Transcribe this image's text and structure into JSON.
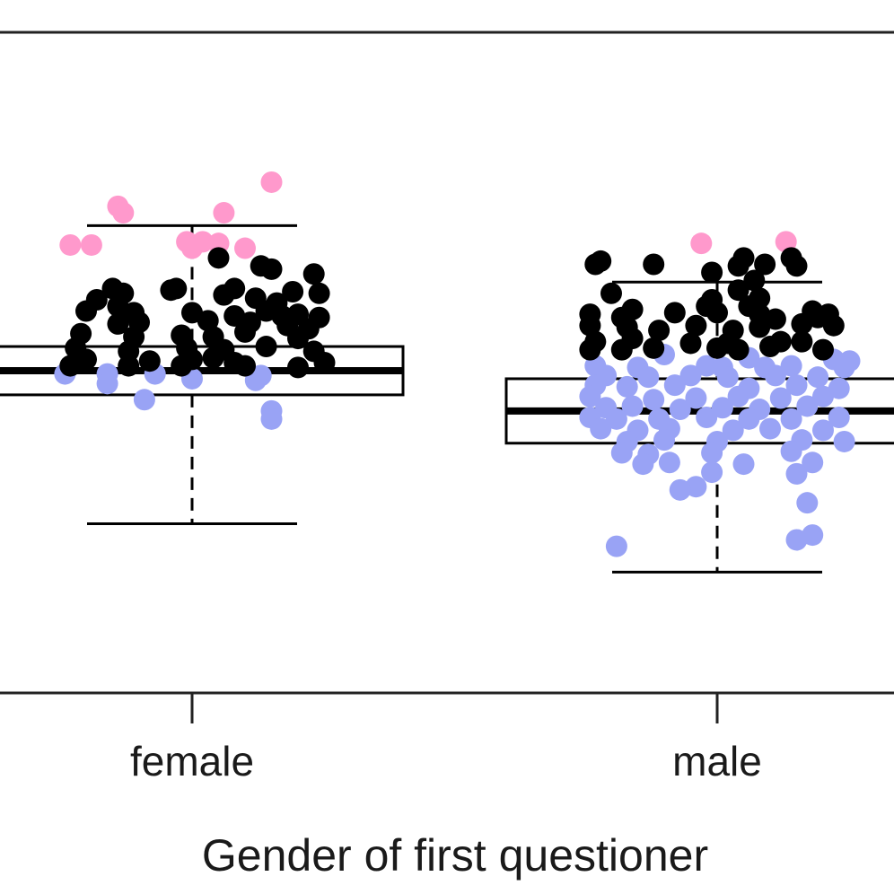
{
  "chart_data": {
    "type": "box",
    "xlabel": "Gender of first questioner",
    "categories": [
      "female",
      "male"
    ],
    "colors": {
      "pink": "#ff99cc",
      "black": "#000000",
      "blue": "#99a3f5",
      "box": "#000000"
    },
    "boxes": [
      {
        "category": "female",
        "whisker_low": 0.305,
        "q1": 0.385,
        "median": 0.4,
        "q3": 0.415,
        "whisker_high": 0.49
      },
      {
        "category": "male",
        "whisker_low": 0.275,
        "q1": 0.355,
        "median": 0.375,
        "q3": 0.395,
        "whisker_high": 0.455
      }
    ],
    "ylim": [
      0.2,
      0.61
    ],
    "points": {
      "female": {
        "pink": [
          [
            -0.14,
            0.502
          ],
          [
            -0.13,
            0.498
          ],
          [
            0.06,
            0.498
          ],
          [
            0.15,
            0.517
          ],
          [
            -0.23,
            0.478
          ],
          [
            -0.19,
            0.478
          ],
          [
            -0.01,
            0.48
          ],
          [
            0.02,
            0.48
          ],
          [
            0.05,
            0.479
          ],
          [
            0.1,
            0.476
          ],
          [
            0.0,
            0.476
          ]
        ],
        "black": [
          [
            0.05,
            0.47
          ],
          [
            0.13,
            0.465
          ],
          [
            0.15,
            0.463
          ],
          [
            0.23,
            0.46
          ],
          [
            -0.15,
            0.451
          ],
          [
            -0.13,
            0.448
          ],
          [
            -0.04,
            0.45
          ],
          [
            -0.03,
            0.451
          ],
          [
            0.08,
            0.451
          ],
          [
            0.06,
            0.447
          ],
          [
            0.19,
            0.449
          ],
          [
            0.24,
            0.448
          ],
          [
            -0.18,
            0.444
          ],
          [
            -0.14,
            0.44
          ],
          [
            0.12,
            0.445
          ],
          [
            0.16,
            0.442
          ],
          [
            -0.2,
            0.437
          ],
          [
            -0.11,
            0.436
          ],
          [
            0.0,
            0.436
          ],
          [
            0.08,
            0.434
          ],
          [
            0.14,
            0.437
          ],
          [
            0.17,
            0.434
          ],
          [
            0.2,
            0.435
          ],
          [
            0.24,
            0.433
          ],
          [
            -0.14,
            0.429
          ],
          [
            -0.1,
            0.43
          ],
          [
            0.03,
            0.431
          ],
          [
            0.11,
            0.43
          ],
          [
            0.18,
            0.428
          ],
          [
            0.22,
            0.426
          ],
          [
            -0.21,
            0.423
          ],
          [
            -0.11,
            0.421
          ],
          [
            -0.02,
            0.422
          ],
          [
            0.04,
            0.421
          ],
          [
            0.1,
            0.424
          ],
          [
            0.2,
            0.42
          ],
          [
            -0.22,
            0.414
          ],
          [
            -0.12,
            0.412
          ],
          [
            -0.01,
            0.414
          ],
          [
            0.06,
            0.413
          ],
          [
            0.14,
            0.415
          ],
          [
            0.23,
            0.412
          ],
          [
            -0.2,
            0.407
          ],
          [
            -0.08,
            0.406
          ],
          [
            0.0,
            0.407
          ],
          [
            0.04,
            0.408
          ],
          [
            0.08,
            0.405
          ],
          [
            0.25,
            0.405
          ],
          [
            -0.23,
            0.403
          ],
          [
            -0.12,
            0.403
          ],
          [
            -0.02,
            0.403
          ],
          [
            0.1,
            0.403
          ],
          [
            0.2,
            0.402
          ]
        ],
        "blue": [
          [
            -0.24,
            0.398
          ],
          [
            -0.16,
            0.398
          ],
          [
            -0.07,
            0.398
          ],
          [
            0.0,
            0.395
          ],
          [
            0.13,
            0.397
          ],
          [
            0.12,
            0.394
          ],
          [
            -0.16,
            0.392
          ],
          [
            -0.09,
            0.382
          ],
          [
            0.15,
            0.375
          ],
          [
            0.15,
            0.37
          ]
        ]
      },
      "male": {
        "pink": [
          [
            -0.03,
            0.479
          ],
          [
            0.13,
            0.48
          ]
        ],
        "black": [
          [
            0.05,
            0.47
          ],
          [
            0.14,
            0.47
          ],
          [
            -0.22,
            0.468
          ],
          [
            -0.23,
            0.466
          ],
          [
            -0.12,
            0.466
          ],
          [
            0.09,
            0.466
          ],
          [
            0.04,
            0.465
          ],
          [
            0.15,
            0.465
          ],
          [
            -0.01,
            0.461
          ],
          [
            0.07,
            0.456
          ],
          [
            -0.2,
            0.448
          ],
          [
            0.04,
            0.45
          ],
          [
            -0.01,
            0.444
          ],
          [
            0.08,
            0.445
          ],
          [
            -0.02,
            0.44
          ],
          [
            0.06,
            0.44
          ],
          [
            0.08,
            0.435
          ],
          [
            -0.24,
            0.435
          ],
          [
            -0.16,
            0.438
          ],
          [
            -0.18,
            0.433
          ],
          [
            -0.08,
            0.436
          ],
          [
            0.0,
            0.436
          ],
          [
            0.11,
            0.432
          ],
          [
            0.18,
            0.437
          ],
          [
            0.19,
            0.433
          ],
          [
            0.21,
            0.435
          ],
          [
            -0.24,
            0.428
          ],
          [
            -0.17,
            0.427
          ],
          [
            -0.11,
            0.425
          ],
          [
            -0.04,
            0.428
          ],
          [
            0.03,
            0.425
          ],
          [
            0.08,
            0.427
          ],
          [
            0.16,
            0.429
          ],
          [
            0.22,
            0.428
          ],
          [
            -0.23,
            0.418
          ],
          [
            -0.16,
            0.42
          ],
          [
            -0.05,
            0.417
          ],
          [
            0.02,
            0.417
          ],
          [
            0.12,
            0.418
          ],
          [
            0.16,
            0.418
          ],
          [
            -0.24,
            0.413
          ],
          [
            -0.18,
            0.413
          ],
          [
            -0.12,
            0.414
          ],
          [
            0.0,
            0.414
          ],
          [
            0.04,
            0.413
          ],
          [
            0.1,
            0.415
          ],
          [
            0.2,
            0.413
          ]
        ],
        "blue": [
          [
            -0.1,
            0.41
          ],
          [
            0.06,
            0.408
          ],
          [
            0.22,
            0.407
          ],
          [
            0.25,
            0.406
          ],
          [
            -0.23,
            0.403
          ],
          [
            -0.15,
            0.402
          ],
          [
            -0.02,
            0.403
          ],
          [
            0.01,
            0.402
          ],
          [
            0.09,
            0.402
          ],
          [
            0.14,
            0.403
          ],
          [
            0.24,
            0.402
          ],
          [
            -0.21,
            0.397
          ],
          [
            -0.13,
            0.396
          ],
          [
            -0.05,
            0.397
          ],
          [
            0.02,
            0.396
          ],
          [
            0.11,
            0.397
          ],
          [
            0.19,
            0.396
          ],
          [
            -0.23,
            0.391
          ],
          [
            -0.17,
            0.39
          ],
          [
            -0.08,
            0.391
          ],
          [
            0.06,
            0.389
          ],
          [
            0.15,
            0.391
          ],
          [
            0.23,
            0.389
          ],
          [
            -0.24,
            0.384
          ],
          [
            -0.12,
            0.382
          ],
          [
            -0.04,
            0.383
          ],
          [
            0.04,
            0.384
          ],
          [
            0.12,
            0.383
          ],
          [
            0.2,
            0.384
          ],
          [
            -0.21,
            0.377
          ],
          [
            -0.16,
            0.378
          ],
          [
            -0.07,
            0.376
          ],
          [
            0.01,
            0.377
          ],
          [
            0.08,
            0.376
          ],
          [
            0.17,
            0.378
          ],
          [
            -0.24,
            0.371
          ],
          [
            -0.19,
            0.37
          ],
          [
            -0.11,
            0.37
          ],
          [
            -0.02,
            0.371
          ],
          [
            0.06,
            0.37
          ],
          [
            0.14,
            0.37
          ],
          [
            0.23,
            0.371
          ],
          [
            -0.22,
            0.364
          ],
          [
            -0.15,
            0.363
          ],
          [
            -0.09,
            0.364
          ],
          [
            0.03,
            0.363
          ],
          [
            0.1,
            0.364
          ],
          [
            0.2,
            0.363
          ],
          [
            -0.17,
            0.356
          ],
          [
            -0.1,
            0.357
          ],
          [
            0.0,
            0.356
          ],
          [
            0.16,
            0.357
          ],
          [
            0.24,
            0.356
          ],
          [
            -0.18,
            0.349
          ],
          [
            -0.13,
            0.348
          ],
          [
            -0.01,
            0.349
          ],
          [
            0.14,
            0.35
          ],
          [
            -0.14,
            0.342
          ],
          [
            -0.09,
            0.343
          ],
          [
            0.05,
            0.342
          ],
          [
            -0.01,
            0.337
          ],
          [
            0.18,
            0.343
          ],
          [
            0.15,
            0.336
          ],
          [
            -0.04,
            0.328
          ],
          [
            -0.07,
            0.326
          ],
          [
            0.17,
            0.318
          ],
          [
            -0.19,
            0.291
          ],
          [
            0.15,
            0.295
          ],
          [
            0.18,
            0.298
          ]
        ]
      }
    }
  }
}
